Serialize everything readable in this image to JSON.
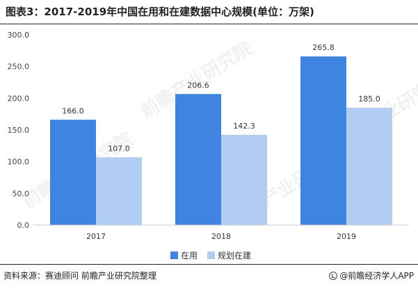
{
  "title": "图表3：2017-2019年中国在用和在建数据中心规模(单位：万架)",
  "source": "资料来源：赛迪顾问 前瞻产业研究院整理",
  "brand": "@前瞻经济学人APP",
  "watermark": "前瞻产业研究院",
  "colors": {
    "in_use": "#3f84e0",
    "under_construction": "#b2cdf2",
    "axis": "#cfcfcf",
    "grid": "#e9e9e9"
  },
  "chart_data": {
    "type": "bar",
    "title": "图表3：2017-2019年中国在用和在建数据中心规模(单位：万架)",
    "xlabel": "",
    "ylabel": "",
    "categories": [
      "2017",
      "2018",
      "2019"
    ],
    "series": [
      {
        "name": "在用",
        "values": [
          166.0,
          206.6,
          265.8
        ]
      },
      {
        "name": "规划在建",
        "values": [
          107.0,
          142.3,
          185.0
        ]
      }
    ],
    "ylim": [
      0,
      300
    ],
    "yticks": [
      "0.0",
      "50.0",
      "100.0",
      "150.0",
      "200.0",
      "250.0",
      "300.0"
    ],
    "grid": false,
    "legend_position": "bottom"
  }
}
